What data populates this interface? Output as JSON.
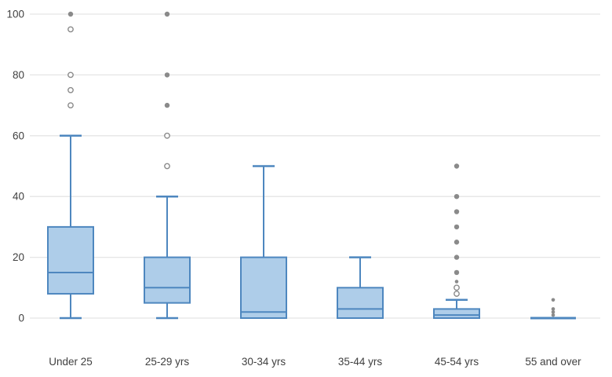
{
  "chart_data": {
    "type": "boxplot",
    "title": "",
    "xlabel": "",
    "ylabel": "",
    "categories": [
      "Under 25",
      "25-29 yrs",
      "30-34 yrs",
      "35-44 yrs",
      "45-54 yrs",
      "55 and over"
    ],
    "ylim": [
      0,
      100
    ],
    "yticks": [
      0,
      20,
      40,
      60,
      80,
      100
    ],
    "grid": true,
    "legend": "none",
    "boxes": [
      {
        "category": "Under 25",
        "whisker_low": 0,
        "q1": 8,
        "median": 15,
        "q3": 30,
        "whisker_high": 60,
        "outliers": [
          {
            "v": 70,
            "style": "open"
          },
          {
            "v": 75,
            "style": "open"
          },
          {
            "v": 80,
            "style": "open"
          },
          {
            "v": 95,
            "style": "open"
          },
          {
            "v": 100,
            "style": "filled"
          }
        ]
      },
      {
        "category": "25-29 yrs",
        "whisker_low": 0,
        "q1": 5,
        "median": 10,
        "q3": 20,
        "whisker_high": 40,
        "outliers": [
          {
            "v": 50,
            "style": "open"
          },
          {
            "v": 60,
            "style": "open"
          },
          {
            "v": 70,
            "style": "filled"
          },
          {
            "v": 80,
            "style": "filled"
          },
          {
            "v": 100,
            "style": "filled"
          }
        ]
      },
      {
        "category": "30-34 yrs",
        "whisker_low": 0,
        "q1": 0,
        "median": 2,
        "q3": 20,
        "whisker_high": 50,
        "outliers": []
      },
      {
        "category": "35-44 yrs",
        "whisker_low": 0,
        "q1": 0,
        "median": 3,
        "q3": 10,
        "whisker_high": 20,
        "outliers": []
      },
      {
        "category": "45-54 yrs",
        "whisker_low": 0,
        "q1": 0,
        "median": 1,
        "q3": 3,
        "whisker_high": 6,
        "outliers": [
          {
            "v": 8,
            "style": "open"
          },
          {
            "v": 10,
            "style": "open"
          },
          {
            "v": 12,
            "style": "filled",
            "small": true
          },
          {
            "v": 15,
            "style": "filled"
          },
          {
            "v": 20,
            "style": "filled"
          },
          {
            "v": 25,
            "style": "filled"
          },
          {
            "v": 30,
            "style": "filled"
          },
          {
            "v": 35,
            "style": "filled"
          },
          {
            "v": 40,
            "style": "filled"
          },
          {
            "v": 50,
            "style": "filled"
          }
        ]
      },
      {
        "category": "55 and over",
        "whisker_low": 0,
        "q1": 0,
        "median": 0,
        "q3": 0,
        "whisker_high": 0,
        "outliers": [
          {
            "v": 1,
            "style": "filled",
            "small": true
          },
          {
            "v": 2,
            "style": "filled",
            "small": true
          },
          {
            "v": 3,
            "style": "filled",
            "small": true
          },
          {
            "v": 6,
            "style": "filled",
            "small": true
          }
        ]
      }
    ],
    "colors": {
      "box_fill": "#aecde9",
      "box_stroke": "#4e87bf",
      "median_line": "#4e87bf",
      "outlier_filled": "#8a8a8a",
      "outlier_open_stroke": "#8a8a8a",
      "outlier_open_fill": "#ffffff",
      "gridline": "#e5e5e5",
      "tick_text": "#404040",
      "background": "#ffffff"
    }
  }
}
